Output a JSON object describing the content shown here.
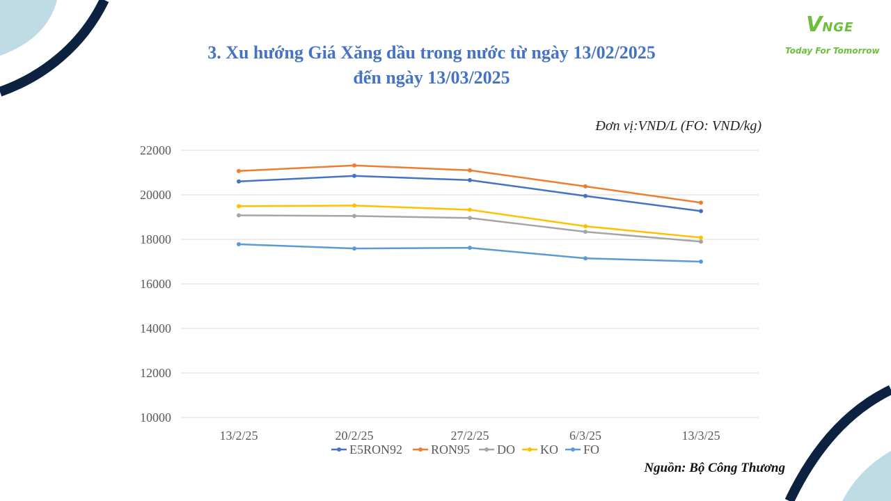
{
  "slide": {
    "title_line1": "3. Xu hướng Giá Xăng dầu trong nước từ ngày 13/02/2025",
    "title_line2": "đến ngày 13/03/2025",
    "unit_note": "Đơn vị:VND/L (FO: VND/kg)",
    "source": "Nguồn: Bộ Công Thương"
  },
  "logo": {
    "mark_first": "V",
    "mark_rest": "NGE",
    "tagline": "Today For Tomorrow"
  },
  "colors": {
    "title": "#4472C4",
    "brand": "#6BBF3B",
    "decor_navy": "#0D2240",
    "decor_light": "#BFDCE5"
  },
  "chart_data": {
    "type": "line",
    "categories": [
      "13/2/25",
      "20/2/25",
      "27/2/25",
      "6/3/25",
      "13/3/25"
    ],
    "ylim": [
      10000,
      22000
    ],
    "yticks": [
      10000,
      12000,
      14000,
      16000,
      18000,
      20000,
      22000
    ],
    "grid": true,
    "legend_position": "bottom",
    "series": [
      {
        "name": "E5RON92",
        "color": "#4472C4",
        "values": [
          20600,
          20850,
          20660,
          19950,
          19270
        ]
      },
      {
        "name": "RON95",
        "color": "#ED7D31",
        "values": [
          21070,
          21320,
          21100,
          20380,
          19650
        ]
      },
      {
        "name": "DO",
        "color": "#A5A5A5",
        "values": [
          19080,
          19050,
          18960,
          18340,
          17900
        ]
      },
      {
        "name": "KO",
        "color": "#FFC000",
        "values": [
          19490,
          19520,
          19330,
          18590,
          18080
        ]
      },
      {
        "name": "FO",
        "color": "#5B9BD5",
        "values": [
          17780,
          17590,
          17620,
          17150,
          17000
        ]
      }
    ]
  }
}
